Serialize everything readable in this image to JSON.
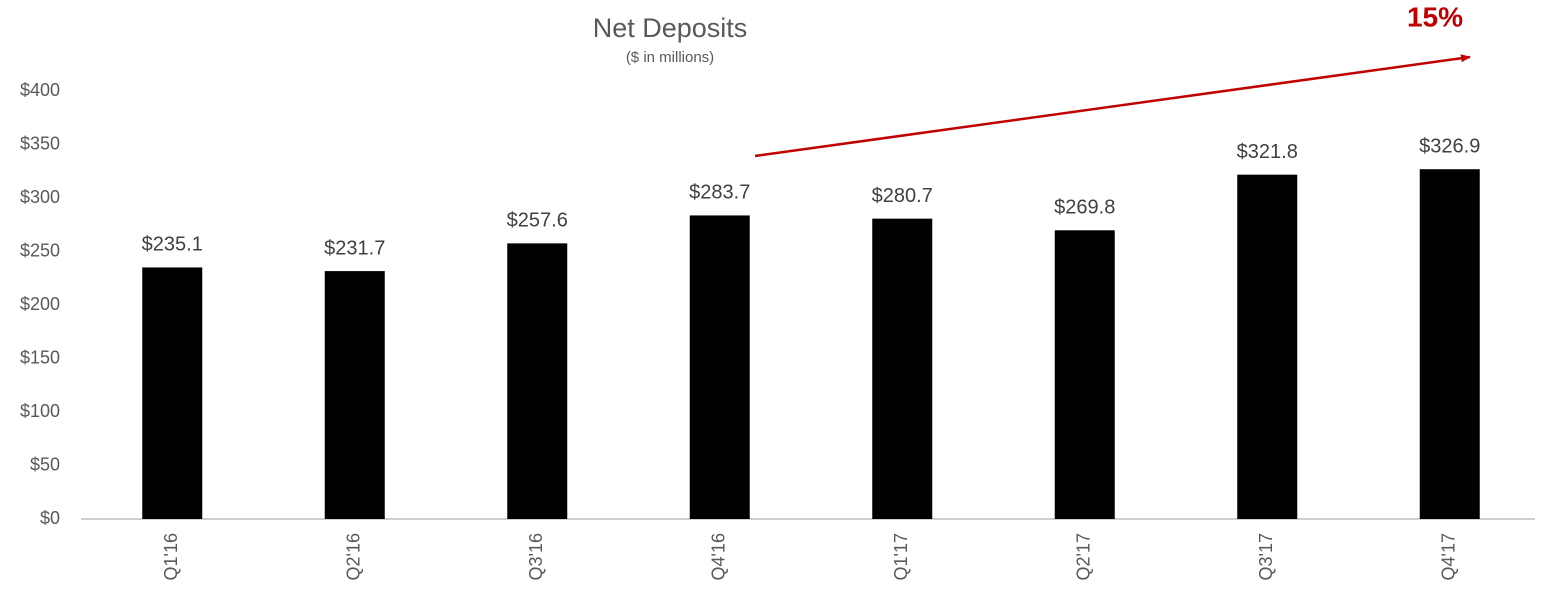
{
  "chart_data": {
    "type": "bar",
    "title": "Net Deposits",
    "subtitle": "($ in millions)",
    "categories": [
      "Q1'16",
      "Q2'16",
      "Q3'16",
      "Q4'16",
      "Q1'17",
      "Q2'17",
      "Q3'17",
      "Q4'17"
    ],
    "values": [
      235.1,
      231.7,
      257.6,
      283.7,
      280.7,
      269.8,
      321.8,
      326.9
    ],
    "value_labels": [
      "$235.1",
      "$231.7",
      "$257.6",
      "$283.7",
      "$280.7",
      "$269.8",
      "$321.8",
      "$326.9"
    ],
    "color": "#000000",
    "ylim": [
      0,
      400
    ],
    "yticks": [
      {
        "value": 0,
        "label": "$0"
      },
      {
        "value": 50,
        "label": "$50"
      },
      {
        "value": 100,
        "label": "$100"
      },
      {
        "value": 150,
        "label": "$150"
      },
      {
        "value": 200,
        "label": "$200"
      },
      {
        "value": 250,
        "label": "$250"
      },
      {
        "value": 300,
        "label": "$300"
      },
      {
        "value": 350,
        "label": "$350"
      },
      {
        "value": 400,
        "label": "$400"
      }
    ],
    "grid": false,
    "annotation": "15%"
  }
}
